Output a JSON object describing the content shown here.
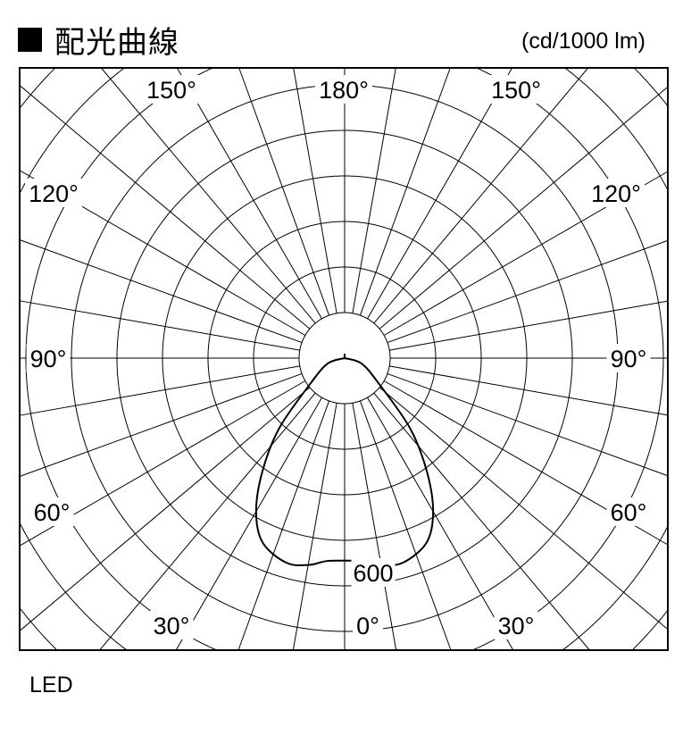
{
  "header": {
    "title": "配光曲線",
    "unit": "(cd/1000 lm)"
  },
  "caption": "LED",
  "chart_data": {
    "type": "polar-line",
    "title": "配光曲線",
    "unit": "(cd/1000 lm)",
    "angle_labels": [
      {
        "text": "180°",
        "angle": 180,
        "side": "center"
      },
      {
        "text": "150°",
        "angle": 150,
        "side": "left"
      },
      {
        "text": "150°",
        "angle": 150,
        "side": "right"
      },
      {
        "text": "120°",
        "angle": 120,
        "side": "left"
      },
      {
        "text": "120°",
        "angle": 120,
        "side": "right"
      },
      {
        "text": "90°",
        "angle": 90,
        "side": "left"
      },
      {
        "text": "90°",
        "angle": 90,
        "side": "right"
      },
      {
        "text": "60°",
        "angle": 60,
        "side": "left"
      },
      {
        "text": "60°",
        "angle": 60,
        "side": "right"
      },
      {
        "text": "30°",
        "angle": 30,
        "side": "left"
      },
      {
        "text": "30°",
        "angle": 30,
        "side": "right"
      },
      {
        "text": "0°",
        "angle": 0,
        "side": "center"
      }
    ],
    "radial_label": {
      "text": "600",
      "value": 600
    },
    "spoke_step_deg": 10,
    "grid": true,
    "series": [
      {
        "name": "LED",
        "color": "#000000",
        "angles": [
          0,
          5,
          10,
          16,
          24,
          30,
          36,
          43,
          53,
          72,
          90
        ],
        "values": [
          540,
          543,
          560,
          567,
          538,
          472,
          373,
          256,
          116,
          48,
          0
        ]
      }
    ]
  }
}
